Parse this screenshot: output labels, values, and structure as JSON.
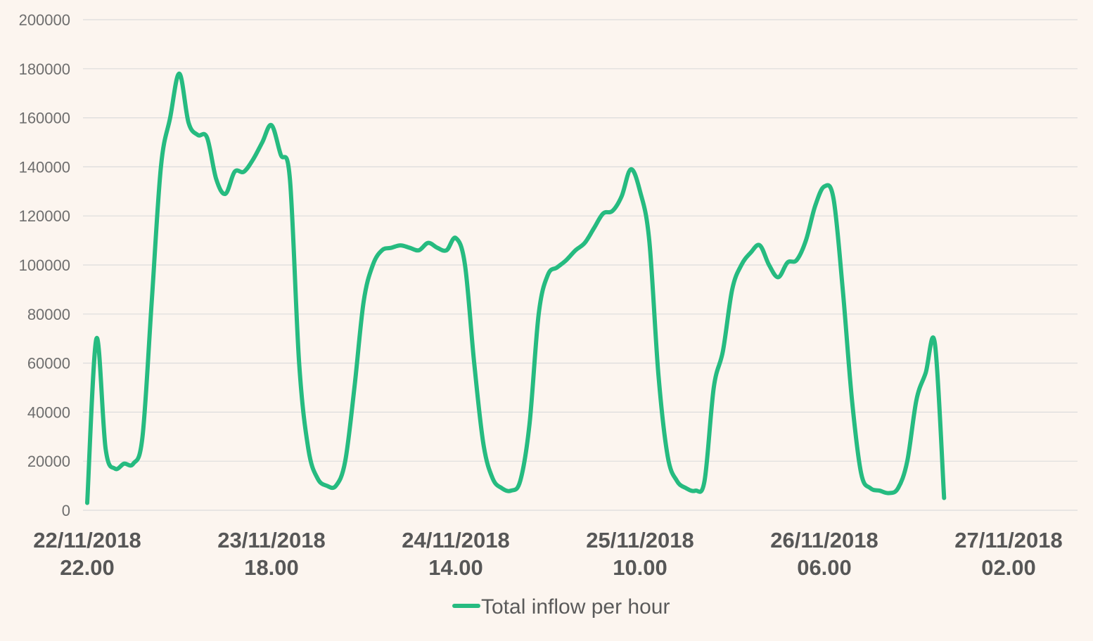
{
  "colors": {
    "background": "#fcf5ef",
    "series": "#26bb80",
    "grid": "#dcdcdc",
    "y_tick_text": "#6e6e6e",
    "x_tick_text": "#575757",
    "legend_text": "#5a5a5a"
  },
  "chart_data": {
    "type": "line",
    "title": "",
    "xlabel": "",
    "ylabel": "",
    "ylim": [
      0,
      200000
    ],
    "yticks": [
      0,
      20000,
      40000,
      60000,
      80000,
      100000,
      120000,
      140000,
      160000,
      180000,
      200000
    ],
    "grid": true,
    "legend_position": "bottom",
    "x_ticks": [
      {
        "index": 0,
        "date": "22/11/2018",
        "time": "22.00"
      },
      {
        "index": 20,
        "date": "23/11/2018",
        "time": "18.00"
      },
      {
        "index": 40,
        "date": "24/11/2018",
        "time": "14.00"
      },
      {
        "index": 60,
        "date": "25/11/2018",
        "time": "10.00"
      },
      {
        "index": 80,
        "date": "26/11/2018",
        "time": "06.00"
      },
      {
        "index": 100,
        "date": "27/11/2018",
        "time": "02.00"
      }
    ],
    "series": [
      {
        "name": "Total inflow per hour",
        "values": [
          3000,
          70000,
          25000,
          17000,
          19000,
          19000,
          30000,
          85000,
          140000,
          160000,
          178000,
          158000,
          153000,
          152000,
          135000,
          129000,
          138000,
          138000,
          143000,
          150000,
          157000,
          145000,
          135000,
          60000,
          25000,
          13000,
          10000,
          10000,
          20000,
          50000,
          85000,
          100000,
          106000,
          107000,
          108000,
          107000,
          106000,
          109000,
          107000,
          106000,
          111000,
          100000,
          60000,
          27000,
          13000,
          9000,
          8000,
          12000,
          35000,
          80000,
          96000,
          99000,
          102000,
          106000,
          109000,
          115000,
          121000,
          122000,
          128000,
          139000,
          130000,
          110000,
          55000,
          22000,
          12000,
          9000,
          8000,
          12000,
          50000,
          65000,
          90000,
          100000,
          105000,
          108000,
          100000,
          95000,
          101000,
          102000,
          110000,
          124000,
          132000,
          127000,
          90000,
          45000,
          15000,
          9000,
          8000,
          7000,
          9000,
          20000,
          45000,
          56000,
          68000,
          5000
        ]
      }
    ]
  }
}
